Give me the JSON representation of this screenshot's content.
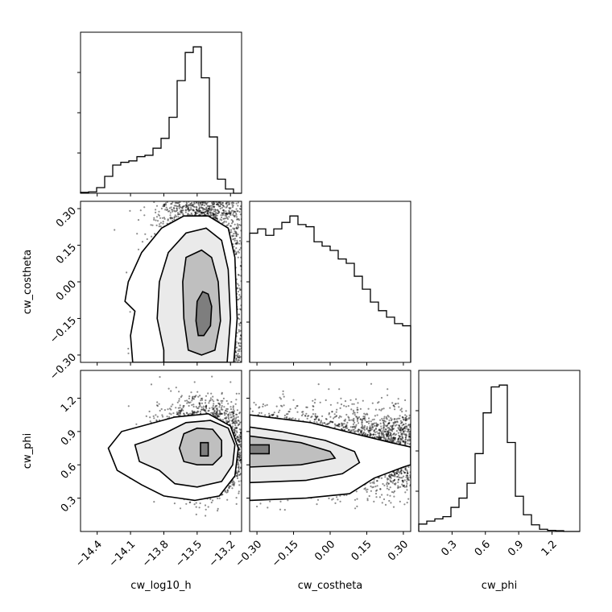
{
  "chart_data": {
    "type": "corner",
    "parameters": [
      "cw_log10_h",
      "cw_costheta",
      "cw_phi"
    ],
    "ranges": {
      "cw_log10_h": [
        -14.55,
        -13.1
      ],
      "cw_costheta": [
        -0.33,
        0.33
      ],
      "cw_phi": [
        0.0,
        1.45
      ]
    },
    "ticks": {
      "cw_log10_h": {
        "values": [
          -14.4,
          -14.1,
          -13.8,
          -13.5,
          -13.2
        ],
        "labels": [
          "−14.4",
          "−14.1",
          "−13.8",
          "−13.5",
          "−13.2"
        ]
      },
      "cw_costheta": {
        "values": [
          -0.3,
          -0.15,
          0.0,
          0.15,
          0.3
        ],
        "labels": [
          "−0.30",
          "−0.15",
          "0.00",
          "0.15",
          "0.30"
        ]
      },
      "cw_phi": {
        "values": [
          0.3,
          0.6,
          0.9,
          1.2
        ],
        "labels": [
          "0.3",
          "0.6",
          "0.9",
          "1.2"
        ]
      }
    },
    "histograms": [
      {
        "parameter": "cw_log10_h",
        "bins": 20,
        "counts": [
          0.3,
          0.5,
          2,
          6,
          10,
          11,
          11.5,
          13,
          13.5,
          16,
          19.5,
          27,
          40,
          50,
          52,
          41,
          20,
          5,
          1.5,
          0
        ]
      },
      {
        "parameter": "cw_costheta",
        "bins": 20,
        "counts": [
          30,
          31,
          29.5,
          31,
          32.5,
          34,
          32,
          31.5,
          28,
          27,
          26,
          24,
          23,
          20,
          17,
          14,
          12,
          10.5,
          9,
          8.5
        ]
      },
      {
        "parameter": "cw_phi",
        "bins": 20,
        "counts": [
          2,
          2.8,
          3.4,
          4,
          6.5,
          9,
          13,
          21,
          32,
          39,
          39.5,
          24,
          9.5,
          4.5,
          1.8,
          0.6,
          0.3,
          0.2,
          0,
          0
        ]
      }
    ],
    "pairs": [
      {
        "x": "cw_log10_h",
        "y": "cw_costheta",
        "center": [
          -13.44,
          -0.15
        ],
        "spread": [
          0.2,
          0.27
        ],
        "contours": [
          {
            "level": 1,
            "points": [
              [
                -13.44,
                -0.22
              ],
              [
                -13.38,
                -0.18
              ],
              [
                -13.37,
                -0.1
              ],
              [
                -13.4,
                -0.05
              ],
              [
                -13.45,
                -0.04
              ],
              [
                -13.5,
                -0.08
              ],
              [
                -13.51,
                -0.16
              ],
              [
                -13.49,
                -0.22
              ]
            ]
          },
          {
            "level": 2,
            "points": [
              [
                -13.46,
                -0.3
              ],
              [
                -13.34,
                -0.28
              ],
              [
                -13.29,
                -0.16
              ],
              [
                -13.31,
                0.0
              ],
              [
                -13.37,
                0.1
              ],
              [
                -13.46,
                0.13
              ],
              [
                -13.6,
                0.1
              ],
              [
                -13.63,
                0.0
              ],
              [
                -13.62,
                -0.15
              ],
              [
                -13.58,
                -0.28
              ]
            ]
          },
          {
            "level": 3,
            "points": [
              [
                -13.58,
                -0.33
              ],
              [
                -13.23,
                -0.33
              ],
              [
                -13.2,
                -0.15
              ],
              [
                -13.22,
                0.05
              ],
              [
                -13.28,
                0.17
              ],
              [
                -13.42,
                0.22
              ],
              [
                -13.6,
                0.2
              ],
              [
                -13.76,
                0.12
              ],
              [
                -13.84,
                0.0
              ],
              [
                -13.86,
                -0.15
              ],
              [
                -13.8,
                -0.28
              ],
              [
                -13.8,
                -0.33
              ]
            ]
          },
          {
            "level": 4,
            "points": [
              [
                -14.08,
                -0.33
              ],
              [
                -13.17,
                -0.33
              ],
              [
                -13.14,
                -0.15
              ],
              [
                -13.16,
                0.1
              ],
              [
                -13.22,
                0.22
              ],
              [
                -13.4,
                0.27
              ],
              [
                -13.62,
                0.27
              ],
              [
                -13.82,
                0.22
              ],
              [
                -14.0,
                0.12
              ],
              [
                -14.12,
                0.0
              ],
              [
                -14.15,
                -0.08
              ],
              [
                -14.06,
                -0.12
              ],
              [
                -14.1,
                -0.22
              ]
            ]
          }
        ]
      },
      {
        "x": "cw_log10_h",
        "y": "cw_phi",
        "center": [
          -13.44,
          0.75
        ],
        "spread": [
          0.2,
          0.18
        ],
        "contours": [
          {
            "level": 1,
            "points": [
              [
                -13.47,
                0.68
              ],
              [
                -13.4,
                0.68
              ],
              [
                -13.4,
                0.8
              ],
              [
                -13.47,
                0.8
              ]
            ]
          },
          {
            "level": 2,
            "points": [
              [
                -13.5,
                0.6
              ],
              [
                -13.36,
                0.6
              ],
              [
                -13.28,
                0.68
              ],
              [
                -13.28,
                0.82
              ],
              [
                -13.36,
                0.92
              ],
              [
                -13.5,
                0.93
              ],
              [
                -13.62,
                0.88
              ],
              [
                -13.66,
                0.75
              ],
              [
                -13.62,
                0.63
              ]
            ]
          },
          {
            "level": 3,
            "points": [
              [
                -13.5,
                0.4
              ],
              [
                -13.28,
                0.45
              ],
              [
                -13.18,
                0.6
              ],
              [
                -13.16,
                0.78
              ],
              [
                -13.22,
                0.93
              ],
              [
                -13.38,
                1.0
              ],
              [
                -13.6,
                0.98
              ],
              [
                -13.8,
                0.88
              ],
              [
                -13.94,
                0.82
              ],
              [
                -14.06,
                0.78
              ],
              [
                -14.02,
                0.63
              ],
              [
                -13.84,
                0.55
              ],
              [
                -13.7,
                0.43
              ]
            ]
          },
          {
            "level": 4,
            "points": [
              [
                -13.52,
                0.28
              ],
              [
                -13.3,
                0.32
              ],
              [
                -13.16,
                0.5
              ],
              [
                -13.13,
                0.75
              ],
              [
                -13.2,
                0.95
              ],
              [
                -13.4,
                1.06
              ],
              [
                -13.7,
                1.03
              ],
              [
                -13.96,
                0.96
              ],
              [
                -14.18,
                0.9
              ],
              [
                -14.3,
                0.75
              ],
              [
                -14.22,
                0.55
              ],
              [
                -14.0,
                0.42
              ],
              [
                -13.8,
                0.32
              ]
            ]
          }
        ]
      },
      {
        "x": "cw_costheta",
        "y": "cw_phi",
        "center": [
          -0.18,
          0.72
        ],
        "spread": [
          0.2,
          0.17
        ],
        "contours": [
          {
            "level": 1,
            "points": [
              [
                -0.33,
                0.7
              ],
              [
                -0.25,
                0.7
              ],
              [
                -0.25,
                0.78
              ],
              [
                -0.33,
                0.78
              ]
            ]
          },
          {
            "level": 2,
            "points": [
              [
                -0.33,
                0.58
              ],
              [
                -0.12,
                0.6
              ],
              [
                0.02,
                0.66
              ],
              [
                0.0,
                0.72
              ],
              [
                -0.12,
                0.8
              ],
              [
                -0.33,
                0.86
              ]
            ]
          },
          {
            "level": 3,
            "points": [
              [
                -0.33,
                0.44
              ],
              [
                -0.1,
                0.46
              ],
              [
                0.05,
                0.52
              ],
              [
                0.12,
                0.62
              ],
              [
                0.1,
                0.72
              ],
              [
                -0.02,
                0.82
              ],
              [
                -0.2,
                0.9
              ],
              [
                -0.33,
                0.94
              ]
            ]
          },
          {
            "level": 4,
            "points": [
              [
                -0.33,
                0.28
              ],
              [
                -0.1,
                0.3
              ],
              [
                0.08,
                0.34
              ],
              [
                0.18,
                0.48
              ],
              [
                0.3,
                0.58
              ],
              [
                0.33,
                0.6
              ],
              [
                0.33,
                0.76
              ],
              [
                0.25,
                0.8
              ],
              [
                0.1,
                0.88
              ],
              [
                -0.08,
                0.98
              ],
              [
                -0.33,
                1.05
              ]
            ]
          }
        ]
      }
    ]
  }
}
